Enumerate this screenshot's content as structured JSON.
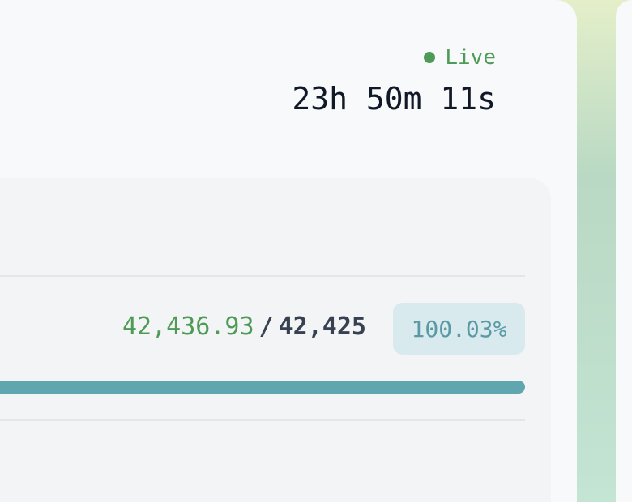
{
  "status": "Live",
  "timer": "23h 50m 11s",
  "progress": {
    "current": "42,436.93",
    "separator": "/",
    "target": "42,425",
    "percent": "100.03%"
  }
}
